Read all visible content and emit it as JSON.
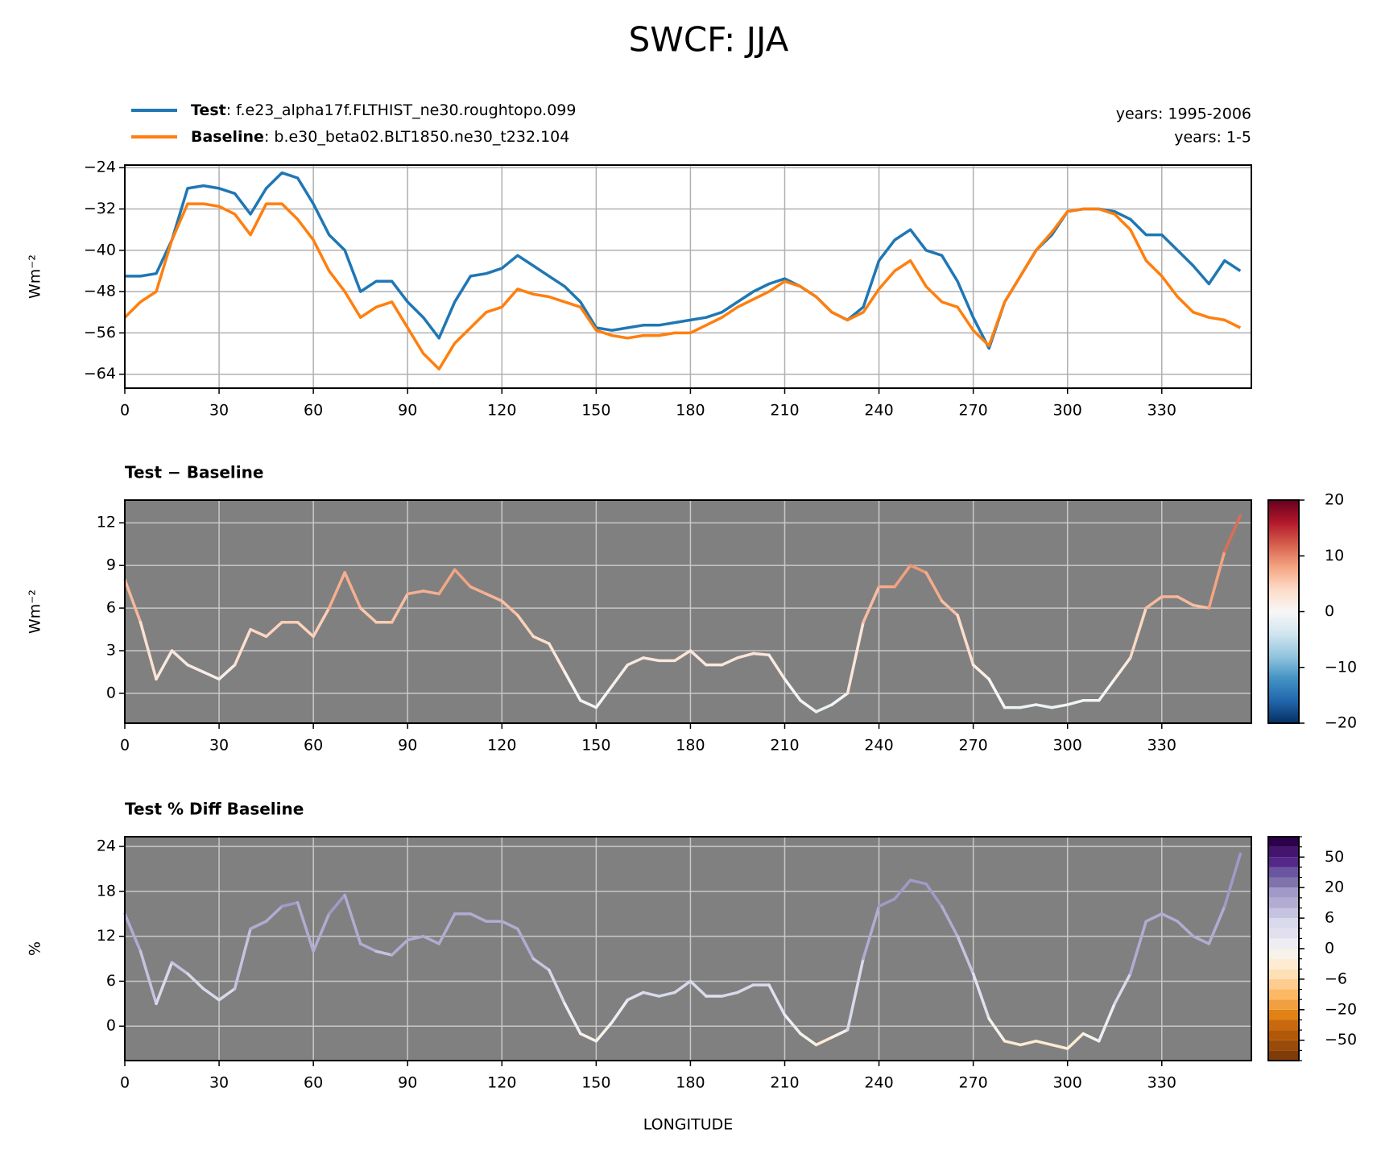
{
  "chart_data": [
    {
      "type": "line",
      "title": "SWCF: JJA",
      "ylabel": "Wm⁻²",
      "background": "#ffffff",
      "grid": true,
      "grid_color": "#b0b0b0",
      "legend": "upper left",
      "xlim": [
        0,
        358.5
      ],
      "xticks": [
        0,
        30,
        60,
        90,
        120,
        150,
        180,
        210,
        240,
        270,
        300,
        330
      ],
      "ylim": [
        -66.7,
        -23.5
      ],
      "yticks": [
        {
          "value": -24,
          "label": "−24"
        },
        {
          "value": -32,
          "label": "−32"
        },
        {
          "value": -40,
          "label": "−40"
        },
        {
          "value": -48,
          "label": "−48"
        },
        {
          "value": -56,
          "label": "−56"
        },
        {
          "value": -64,
          "label": "−64"
        }
      ],
      "x": [
        0,
        5,
        10,
        15,
        20,
        25,
        30,
        35,
        40,
        45,
        50,
        55,
        60,
        65,
        70,
        75,
        80,
        85,
        90,
        95,
        100,
        105,
        110,
        115,
        120,
        125,
        130,
        135,
        140,
        145,
        150,
        155,
        160,
        165,
        170,
        175,
        180,
        185,
        190,
        195,
        200,
        205,
        210,
        215,
        220,
        225,
        230,
        235,
        240,
        245,
        250,
        255,
        260,
        265,
        270,
        275,
        280,
        285,
        290,
        295,
        300,
        305,
        310,
        315,
        320,
        325,
        330,
        335,
        340,
        345,
        350,
        355
      ],
      "series": [
        {
          "name": "Test",
          "description": ": f.e23_alpha17f.FLTHIST_ne30.roughtopo.099",
          "years": "years: 1995-2006",
          "color": "#1f77b4",
          "values": [
            -45,
            -45,
            -44.5,
            -38,
            -28,
            -27.5,
            -28,
            -29,
            -33,
            -28,
            -25,
            -26,
            -31,
            -37,
            -40,
            -48,
            -46,
            -46,
            -50,
            -53,
            -57,
            -50,
            -45,
            -44.5,
            -43.5,
            -41,
            -43,
            -45,
            -47,
            -50,
            -55,
            -55.5,
            -55,
            -54.5,
            -54.5,
            -54,
            -53.5,
            -53,
            -52,
            -50,
            -48,
            -46.5,
            -45.5,
            -47,
            -49,
            -52,
            -53.5,
            -51,
            -42,
            -38,
            -36,
            -40,
            -41,
            -46,
            -53,
            -59,
            -50,
            -45,
            -40,
            -37,
            -32.5,
            -32,
            -32,
            -32.5,
            -34,
            -37,
            -37,
            -40,
            -43,
            -46.5,
            -42,
            -44
          ]
        },
        {
          "name": "Baseline",
          "description": ": b.e30_beta02.BLT1850.ne30_t232.104",
          "years": "years: 1-5",
          "color": "#ff7f0e",
          "values": [
            -53,
            -50,
            -48,
            -38,
            -31,
            -31,
            -31.5,
            -33,
            -37,
            -31,
            -31,
            -34,
            -38,
            -44,
            -48,
            -53,
            -51,
            -50,
            -55,
            -60,
            -63,
            -58,
            -55,
            -52,
            -51,
            -47.5,
            -48.5,
            -49,
            -50,
            -51,
            -55.5,
            -56.5,
            -57,
            -56.5,
            -56.5,
            -56,
            -56,
            -54.5,
            -53,
            -51,
            -49.5,
            -48,
            -46,
            -47,
            -49,
            -52,
            -53.5,
            -52,
            -47.5,
            -44,
            -42,
            -47,
            -50,
            -51,
            -55.5,
            -58.5,
            -50,
            -45,
            -40,
            -36.5,
            -32.5,
            -32,
            -32,
            -33,
            -36,
            -42,
            -45,
            -49,
            -52,
            -53,
            -53.5,
            -55
          ]
        }
      ]
    },
    {
      "type": "line",
      "title": "Test − Baseline",
      "ylabel": "Wm⁻²",
      "background": "#808080",
      "grid": true,
      "grid_color": "#c8c8c8",
      "xlim": [
        0,
        358.5
      ],
      "xticks": [
        0,
        30,
        60,
        90,
        120,
        150,
        180,
        210,
        240,
        270,
        300,
        330
      ],
      "ylim": [
        -2.1,
        13.6
      ],
      "yticks": [
        0,
        3,
        6,
        9,
        12
      ],
      "x": [
        0,
        5,
        10,
        15,
        20,
        25,
        30,
        35,
        40,
        45,
        50,
        55,
        60,
        65,
        70,
        75,
        80,
        85,
        90,
        95,
        100,
        105,
        110,
        115,
        120,
        125,
        130,
        135,
        140,
        145,
        150,
        155,
        160,
        165,
        170,
        175,
        180,
        185,
        190,
        195,
        200,
        205,
        210,
        215,
        220,
        225,
        230,
        235,
        240,
        245,
        250,
        255,
        260,
        265,
        270,
        275,
        280,
        285,
        290,
        295,
        300,
        305,
        310,
        315,
        320,
        325,
        330,
        335,
        340,
        345,
        350,
        355
      ],
      "series": [
        {
          "values": [
            8,
            5,
            1,
            3,
            2,
            1.5,
            1,
            2,
            4.5,
            4,
            5,
            5,
            4,
            6,
            8.5,
            6,
            5,
            5,
            7,
            7.2,
            7,
            8.7,
            7.5,
            7,
            6.5,
            5.5,
            4,
            3.5,
            1.5,
            -0.5,
            -1,
            0.5,
            2,
            2.5,
            2.3,
            2.3,
            3,
            2,
            2,
            2.5,
            2.8,
            2.7,
            1,
            -0.5,
            -1.3,
            -0.8,
            0,
            5,
            7.5,
            7.5,
            9,
            8.5,
            6.5,
            5.5,
            2,
            1,
            -1,
            -1,
            -0.8,
            -1,
            -0.8,
            -0.5,
            -0.5,
            1,
            2.5,
            6,
            6.8,
            6.8,
            6.2,
            6,
            10,
            12.5
          ]
        }
      ],
      "colorbar": {
        "lim": [
          -20,
          20
        ],
        "ticks": [
          20,
          10,
          0,
          {
            "value": -10,
            "label": "−10"
          },
          {
            "value": -20,
            "label": "−20"
          }
        ],
        "colors": [
          "#053061",
          "#2166ac",
          "#4393c3",
          "#92c5de",
          "#d1e5f0",
          "#f7f7f7",
          "#fddbc7",
          "#f4a582",
          "#d6604d",
          "#b2182b",
          "#67001f"
        ]
      }
    },
    {
      "type": "line",
      "title": "Test % Diff Baseline",
      "ylabel": "%",
      "xlabel": "LONGITUDE",
      "background": "#808080",
      "grid": true,
      "grid_color": "#c8c8c8",
      "xlim": [
        0,
        358.5
      ],
      "xticks": [
        0,
        30,
        60,
        90,
        120,
        150,
        180,
        210,
        240,
        270,
        300,
        330
      ],
      "ylim": [
        -4.6,
        25.3
      ],
      "yticks": [
        0,
        6,
        12,
        18,
        24
      ],
      "x": [
        0,
        5,
        10,
        15,
        20,
        25,
        30,
        35,
        40,
        45,
        50,
        55,
        60,
        65,
        70,
        75,
        80,
        85,
        90,
        95,
        100,
        105,
        110,
        115,
        120,
        125,
        130,
        135,
        140,
        145,
        150,
        155,
        160,
        165,
        170,
        175,
        180,
        185,
        190,
        195,
        200,
        205,
        210,
        215,
        220,
        225,
        230,
        235,
        240,
        245,
        250,
        255,
        260,
        265,
        270,
        275,
        280,
        285,
        290,
        295,
        300,
        305,
        310,
        315,
        320,
        325,
        330,
        335,
        340,
        345,
        350,
        355
      ],
      "series": [
        {
          "values": [
            15,
            10,
            3,
            8.5,
            7,
            5,
            3.5,
            5,
            13,
            14,
            16,
            16.5,
            10,
            15,
            17.5,
            11,
            10,
            9.5,
            11.5,
            12,
            11,
            15,
            15,
            14,
            14,
            13,
            9,
            7.5,
            3,
            -1,
            -2,
            0.5,
            3.5,
            4.5,
            4,
            4.5,
            6,
            4,
            4,
            4.5,
            5.5,
            5.5,
            1.5,
            -1,
            -2.5,
            -1.5,
            -0.5,
            9,
            16,
            17,
            19.5,
            19,
            16,
            12,
            7,
            1,
            -2,
            -2.5,
            -2,
            -2.5,
            -3,
            -1,
            -2,
            3,
            7,
            14,
            15,
            14,
            12,
            11,
            16,
            23
          ]
        }
      ],
      "colorbar": {
        "levels": [
          -100,
          -70,
          -50,
          -40,
          -30,
          -20,
          -15,
          -10,
          -6,
          -4,
          -2,
          0,
          2,
          4,
          6,
          10,
          15,
          20,
          30,
          40,
          50,
          70,
          100
        ],
        "ticks": [
          50,
          20,
          6,
          0,
          {
            "value": -6,
            "label": "−6"
          },
          {
            "value": -20,
            "label": "−20"
          },
          {
            "value": -50,
            "label": "−50"
          }
        ],
        "colors": [
          "#7f3b08",
          "#9a4b0a",
          "#b35806",
          "#c8680f",
          "#e08214",
          "#f0a040",
          "#fdb863",
          "#fdcc8e",
          "#fee0b6",
          "#fdebd3",
          "#f7f2ea",
          "#eeedf4",
          "#e2e0ef",
          "#d8daeb",
          "#c6c3e0",
          "#b2abd2",
          "#a19ac8",
          "#8073ac",
          "#6a55a0",
          "#542788",
          "#44146f",
          "#2d004b"
        ]
      }
    }
  ]
}
